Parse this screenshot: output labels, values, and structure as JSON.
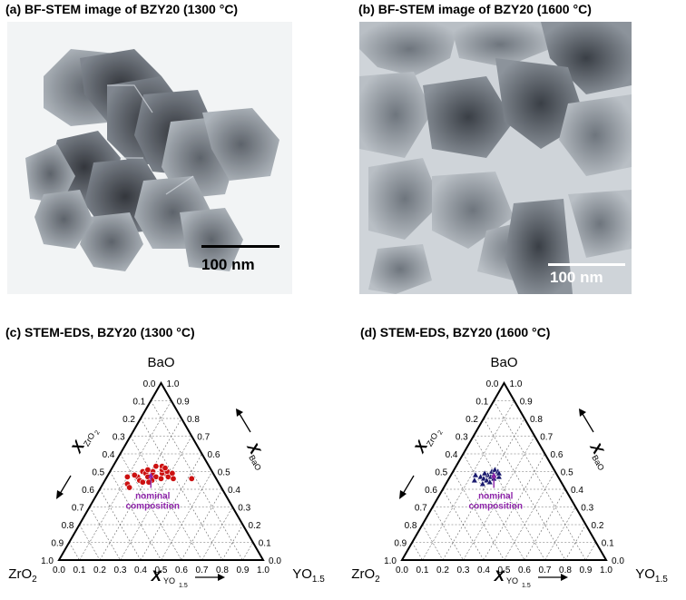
{
  "figure": {
    "panel_a": {
      "label": "(a) BF-STEM image of BZY20 (1300 °C)",
      "scale_bar": "100 nm"
    },
    "panel_b": {
      "label": "(b) BF-STEM image of BZY20 (1600 °C)",
      "scale_bar": "100 nm"
    },
    "panel_c": {
      "label": "(c) STEM-EDS, BZY20 (1300 °C)"
    },
    "panel_d": {
      "label": "(d) STEM-EDS, BZY20 (1600 °C)"
    }
  },
  "ternary": {
    "apex_top": "BaO",
    "apex_left": "ZrO",
    "apex_left_sub": "2",
    "apex_right": "YO",
    "apex_right_sub": "1.5",
    "axis_left": "X",
    "axis_left_sub": "ZrO",
    "axis_left_sub2": "2",
    "axis_right": "X",
    "axis_right_sub": "BaO",
    "axis_bottom": "X",
    "axis_bottom_sub": "YO",
    "axis_bottom_sub2": "1.5",
    "ticks": [
      "0.0",
      "0.1",
      "0.2",
      "0.3",
      "0.4",
      "0.5",
      "0.6",
      "0.7",
      "0.8",
      "0.9",
      "1.0"
    ],
    "annotation": [
      "nominal",
      "composition"
    ],
    "colors": {
      "c_points": "#cc1111",
      "d_points": "#1a1a6e",
      "annotation": "#8e24aa"
    }
  },
  "chart_data": [
    {
      "type": "scatter",
      "title": "(c) STEM-EDS, BZY20 (1300 °C)",
      "series": [
        {
          "points_y_ba": [
            [
              0.15,
              0.47
            ],
            [
              0.16,
              0.5
            ],
            [
              0.18,
              0.49
            ],
            [
              0.2,
              0.47
            ],
            [
              0.17,
              0.45
            ],
            [
              0.21,
              0.5
            ],
            [
              0.22,
              0.48
            ],
            [
              0.24,
              0.47
            ],
            [
              0.23,
              0.45
            ],
            [
              0.19,
              0.44
            ],
            [
              0.26,
              0.49
            ],
            [
              0.25,
              0.51
            ],
            [
              0.27,
              0.46
            ],
            [
              0.29,
              0.48
            ],
            [
              0.28,
              0.5
            ],
            [
              0.3,
              0.47
            ],
            [
              0.31,
              0.49
            ],
            [
              0.21,
              0.53
            ],
            [
              0.24,
              0.53
            ],
            [
              0.26,
              0.52
            ],
            [
              0.13,
              0.48
            ],
            [
              0.12,
              0.43
            ],
            [
              0.14,
              0.41
            ],
            [
              0.33,
              0.46
            ],
            [
              0.42,
              0.46
            ],
            [
              0.1,
              0.47
            ],
            [
              0.18,
              0.51
            ],
            [
              0.22,
              0.44
            ]
          ]
        }
      ],
      "nominal_composition": [
        0.2,
        0.5
      ]
    },
    {
      "type": "scatter",
      "title": "(d) STEM-EDS, BZY20 (1600 °C)",
      "series": [
        {
          "points_y_ba": [
            [
              0.15,
              0.47
            ],
            [
              0.17,
              0.46
            ],
            [
              0.18,
              0.48
            ],
            [
              0.19,
              0.45
            ],
            [
              0.2,
              0.47
            ],
            [
              0.21,
              0.48
            ],
            [
              0.22,
              0.46
            ],
            [
              0.19,
              0.5
            ],
            [
              0.2,
              0.51
            ],
            [
              0.22,
              0.5
            ],
            [
              0.18,
              0.43
            ],
            [
              0.12,
              0.48
            ],
            [
              0.13,
              0.45
            ],
            [
              0.24,
              0.47
            ],
            [
              0.21,
              0.44
            ],
            [
              0.23,
              0.49
            ],
            [
              0.16,
              0.49
            ]
          ]
        }
      ],
      "nominal_composition": [
        0.2,
        0.5
      ]
    }
  ]
}
